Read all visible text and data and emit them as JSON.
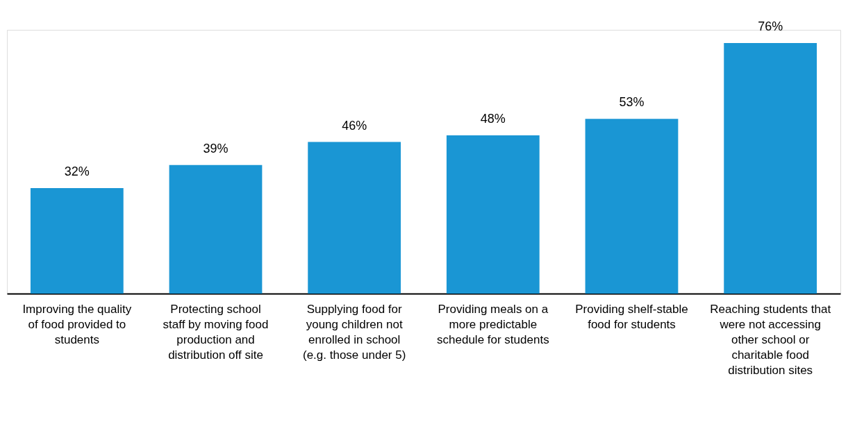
{
  "chart_data": {
    "type": "bar",
    "categories": [
      "Improving the quality of food provided to students",
      "Protecting school staff by moving food production and distribution off site",
      "Supplying food for young children not enrolled in school (e.g. those under 5)",
      "Providing meals on a more predictable schedule for students",
      "Providing shelf-stable food for students",
      "Reaching students that were not accessing other school or charitable food distribution sites"
    ],
    "values": [
      32,
      39,
      46,
      48,
      53,
      76
    ],
    "value_labels": [
      "32%",
      "39%",
      "46%",
      "48%",
      "53%",
      "76%"
    ],
    "color": "#1a96d4",
    "grid": false,
    "tick_labels": "x"
  }
}
